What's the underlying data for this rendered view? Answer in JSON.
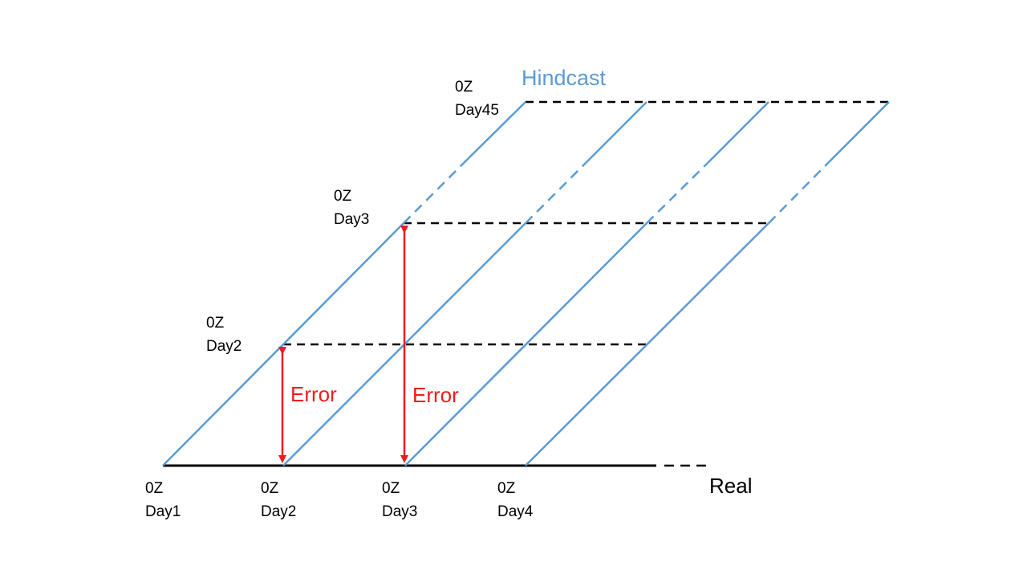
{
  "colors": {
    "hindcast_line": "#5b9bd5",
    "dashed_line": "#000000",
    "real_line": "#000000",
    "error_arrow": "#ee1c1c",
    "error_text": "#ee1c1c",
    "hindcast_text": "#5b9bd5"
  },
  "labels": {
    "hindcast": "Hindcast",
    "real": "Real",
    "error_1": "Error",
    "error_2": "Error",
    "bottom": [
      {
        "time": "0Z",
        "day": "Day1"
      },
      {
        "time": "0Z",
        "day": "Day2"
      },
      {
        "time": "0Z",
        "day": "Day3"
      },
      {
        "time": "0Z",
        "day": "Day4"
      }
    ],
    "vertical": [
      {
        "time": "0Z",
        "day": "Day2"
      },
      {
        "time": "0Z",
        "day": "Day3"
      },
      {
        "time": "0Z",
        "day": "Day45"
      }
    ]
  }
}
